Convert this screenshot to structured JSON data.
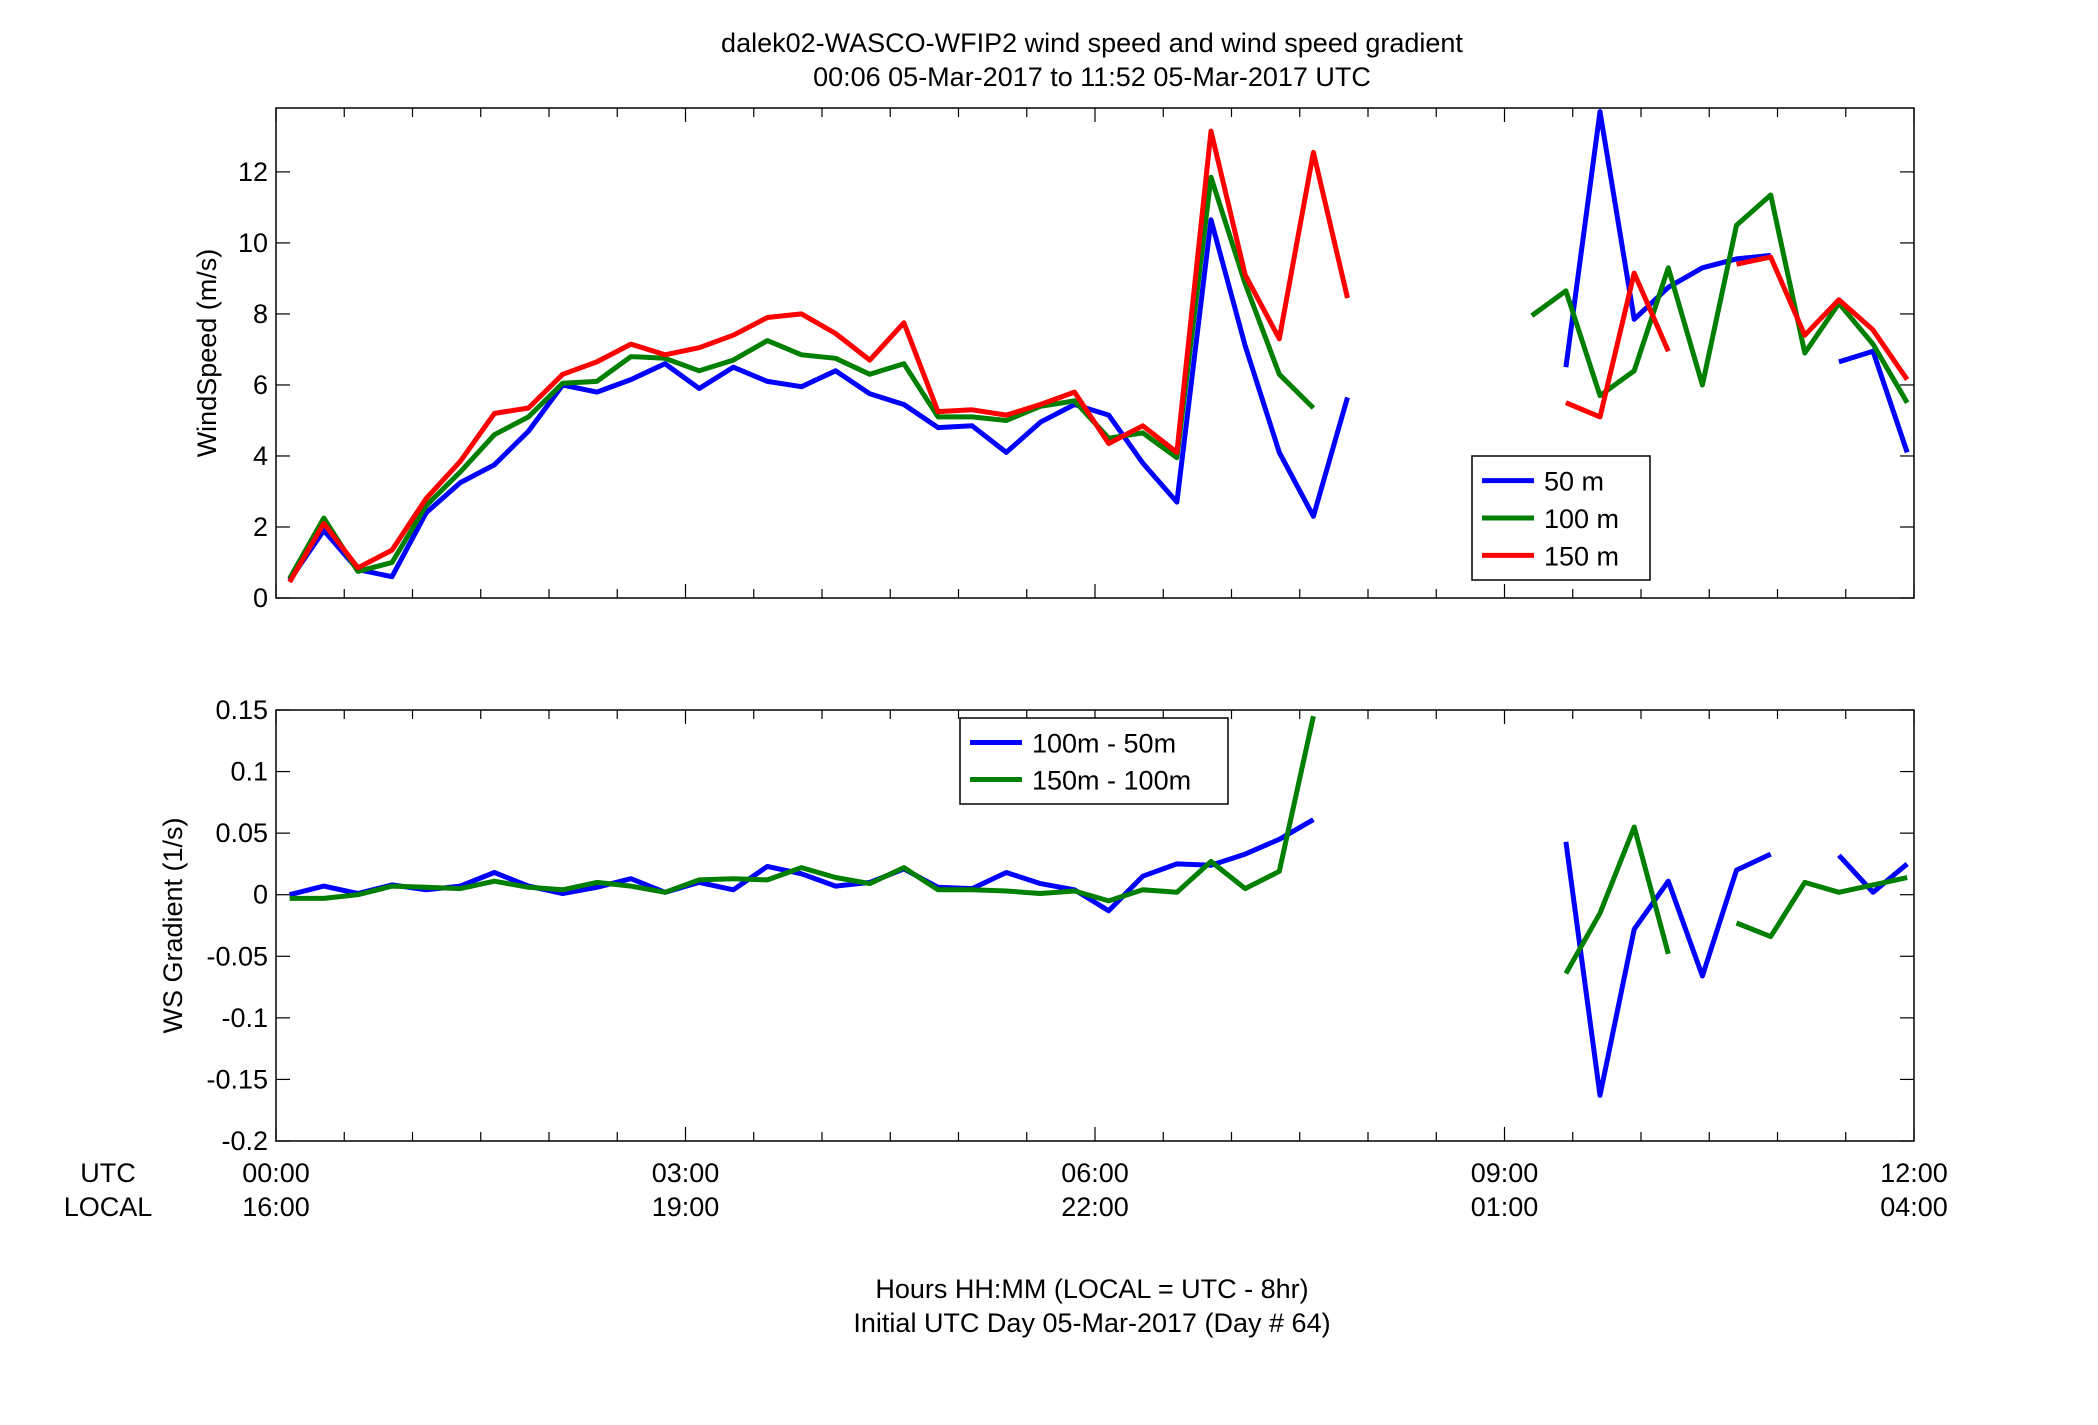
{
  "title_line1": "dalek02-WASCO-WFIP2  wind speed and wind speed gradient",
  "title_line2": "00:06 05-Mar-2017 to 11:52 05-Mar-2017  UTC",
  "xlabel_line1": "Hours HH:MM  (LOCAL = UTC - 8hr)",
  "xlabel_line2": "Initial UTC Day 05-Mar-2017 (Day # 64)",
  "row_label_utc": "UTC",
  "row_label_local": "LOCAL",
  "chart_data": [
    {
      "type": "line",
      "ylabel": "WindSpeed (m/s)",
      "xlim": [
        0,
        12
      ],
      "ylim": [
        0,
        13.8
      ],
      "yticks": [
        0,
        2,
        4,
        6,
        8,
        10,
        12
      ],
      "ytick_labels": [
        "0",
        "2",
        "4",
        "6",
        "8",
        "10",
        "12"
      ],
      "xticks": [
        0,
        3,
        6,
        9,
        12
      ],
      "xtick_labels_utc": [
        "00:00",
        "03:00",
        "06:00",
        "09:00",
        "12:00"
      ],
      "xtick_labels_local": [
        "16:00",
        "19:00",
        "22:00",
        "01:00",
        "04:00"
      ],
      "legend_position": "right",
      "series": [
        {
          "name": "50 m",
          "color": "#0000ff",
          "x": [
            0.1,
            0.35,
            0.6,
            0.85,
            1.1,
            1.35,
            1.6,
            1.85,
            2.1,
            2.35,
            2.6,
            2.85,
            3.1,
            3.35,
            3.6,
            3.85,
            4.1,
            4.35,
            4.6,
            4.85,
            5.1,
            5.35,
            5.6,
            5.85,
            6.1,
            6.35,
            6.6,
            6.85,
            7.1,
            7.35,
            7.6,
            7.85,
            null,
            9.45,
            9.7,
            9.95,
            10.2,
            10.45,
            10.7,
            10.95,
            null,
            11.45,
            11.7,
            11.95
          ],
          "y": [
            0.5,
            1.9,
            0.8,
            0.6,
            2.4,
            3.25,
            3.75,
            4.7,
            6.0,
            5.8,
            6.15,
            6.6,
            5.9,
            6.5,
            6.1,
            5.95,
            6.4,
            5.75,
            5.45,
            4.8,
            4.85,
            4.1,
            4.95,
            5.45,
            5.15,
            3.8,
            2.7,
            10.65,
            7.1,
            4.1,
            2.3,
            5.65,
            null,
            6.5,
            13.7,
            7.85,
            8.75,
            9.3,
            9.55,
            9.65,
            null,
            6.65,
            6.95,
            4.1
          ]
        },
        {
          "name": "100 m",
          "color": "#007f00",
          "x": [
            0.1,
            0.35,
            0.6,
            0.85,
            1.1,
            1.35,
            1.6,
            1.85,
            2.1,
            2.35,
            2.6,
            2.85,
            3.1,
            3.35,
            3.6,
            3.85,
            4.1,
            4.35,
            4.6,
            4.85,
            5.1,
            5.35,
            5.6,
            5.85,
            6.1,
            6.35,
            6.6,
            6.85,
            7.1,
            7.35,
            7.6,
            null,
            9.2,
            9.45,
            9.7,
            9.95,
            10.2,
            10.45,
            10.7,
            10.95,
            11.2,
            11.45,
            11.7,
            11.95
          ],
          "y": [
            0.55,
            2.25,
            0.75,
            1.0,
            2.6,
            3.55,
            4.6,
            5.1,
            6.05,
            6.1,
            6.8,
            6.75,
            6.4,
            6.7,
            7.25,
            6.85,
            6.75,
            6.3,
            6.6,
            5.1,
            5.1,
            5.0,
            5.4,
            5.55,
            4.5,
            4.65,
            3.95,
            11.85,
            8.85,
            6.3,
            5.35,
            null,
            7.95,
            8.65,
            5.7,
            6.4,
            9.3,
            6.0,
            10.5,
            11.35,
            6.9,
            8.3,
            7.15,
            5.5
          ]
        },
        {
          "name": "150 m",
          "color": "#ff0000",
          "x": [
            0.1,
            0.35,
            0.6,
            0.85,
            1.1,
            1.35,
            1.6,
            1.85,
            2.1,
            2.35,
            2.6,
            2.85,
            3.1,
            3.35,
            3.6,
            3.85,
            4.1,
            4.35,
            4.6,
            4.85,
            5.1,
            5.35,
            5.6,
            5.85,
            6.1,
            6.35,
            6.6,
            6.85,
            7.1,
            7.35,
            7.6,
            7.85,
            null,
            9.45,
            9.7,
            9.95,
            10.2,
            null,
            10.7,
            10.95,
            11.2,
            11.45,
            11.7,
            11.95
          ],
          "y": [
            0.45,
            2.1,
            0.85,
            1.35,
            2.8,
            3.85,
            5.2,
            5.35,
            6.3,
            6.65,
            7.15,
            6.85,
            7.05,
            7.4,
            7.9,
            8.0,
            7.45,
            6.7,
            7.75,
            5.25,
            5.3,
            5.15,
            5.45,
            5.8,
            4.35,
            4.85,
            4.1,
            13.15,
            9.1,
            7.3,
            12.55,
            8.45,
            null,
            5.5,
            5.1,
            9.15,
            6.95,
            null,
            9.4,
            9.6,
            7.4,
            8.4,
            7.55,
            6.15
          ]
        }
      ]
    },
    {
      "type": "line",
      "ylabel": "WS Gradient (1/s)",
      "xlim": [
        0,
        12
      ],
      "ylim": [
        -0.2,
        0.15
      ],
      "yticks": [
        -0.2,
        -0.15,
        -0.1,
        -0.05,
        0,
        0.05,
        0.1,
        0.15
      ],
      "ytick_labels": [
        "-0.2",
        "-0.15",
        "-0.1",
        "-0.05",
        "0",
        "0.05",
        "0.1",
        "0.15"
      ],
      "xticks": [
        0,
        3,
        6,
        9,
        12
      ],
      "xtick_labels_utc": [
        "00:00",
        "03:00",
        "06:00",
        "09:00",
        "12:00"
      ],
      "xtick_labels_local": [
        "16:00",
        "19:00",
        "22:00",
        "01:00",
        "04:00"
      ],
      "legend_position": "top-center",
      "series": [
        {
          "name": "100m - 50m",
          "color": "#0000ff",
          "x": [
            0.1,
            0.35,
            0.6,
            0.85,
            1.1,
            1.35,
            1.6,
            1.85,
            2.1,
            2.35,
            2.6,
            2.85,
            3.1,
            3.35,
            3.6,
            3.85,
            4.1,
            4.35,
            4.6,
            4.85,
            5.1,
            5.35,
            5.6,
            5.85,
            6.1,
            6.35,
            6.6,
            6.85,
            7.1,
            7.35,
            7.6,
            null,
            9.45,
            9.7,
            9.95,
            10.2,
            10.45,
            10.7,
            10.95,
            null,
            11.45,
            11.7,
            11.95
          ],
          "y": [
            0.0,
            0.007,
            0.001,
            0.008,
            0.004,
            0.007,
            0.018,
            0.007,
            0.001,
            0.006,
            0.013,
            0.002,
            0.01,
            0.004,
            0.023,
            0.017,
            0.007,
            0.01,
            0.021,
            0.006,
            0.005,
            0.018,
            0.009,
            0.004,
            -0.013,
            0.015,
            0.025,
            0.024,
            0.033,
            0.045,
            0.061,
            null,
            0.043,
            -0.163,
            -0.028,
            0.011,
            -0.066,
            0.02,
            0.033,
            null,
            0.032,
            0.002,
            0.025
          ]
        },
        {
          "name": "150m - 100m",
          "color": "#007f00",
          "x": [
            0.1,
            0.35,
            0.6,
            0.85,
            1.1,
            1.35,
            1.6,
            1.85,
            2.1,
            2.35,
            2.6,
            2.85,
            3.1,
            3.35,
            3.6,
            3.85,
            4.1,
            4.35,
            4.6,
            4.85,
            5.1,
            5.35,
            5.6,
            5.85,
            6.1,
            6.35,
            6.6,
            6.85,
            7.1,
            7.35,
            7.6,
            null,
            9.45,
            9.7,
            9.95,
            10.2,
            null,
            10.7,
            10.95,
            11.2,
            11.45,
            11.7,
            11.95
          ],
          "y": [
            -0.003,
            -0.003,
            0.0,
            0.007,
            0.006,
            0.005,
            0.011,
            0.006,
            0.004,
            0.01,
            0.007,
            0.002,
            0.012,
            0.013,
            0.012,
            0.022,
            0.014,
            0.009,
            0.022,
            0.004,
            0.004,
            0.003,
            0.001,
            0.003,
            -0.005,
            0.004,
            0.002,
            0.027,
            0.005,
            0.019,
            0.145,
            null,
            -0.064,
            -0.015,
            0.055,
            -0.048,
            null,
            -0.023,
            -0.034,
            0.01,
            0.002,
            0.008,
            0.014
          ]
        }
      ]
    }
  ]
}
